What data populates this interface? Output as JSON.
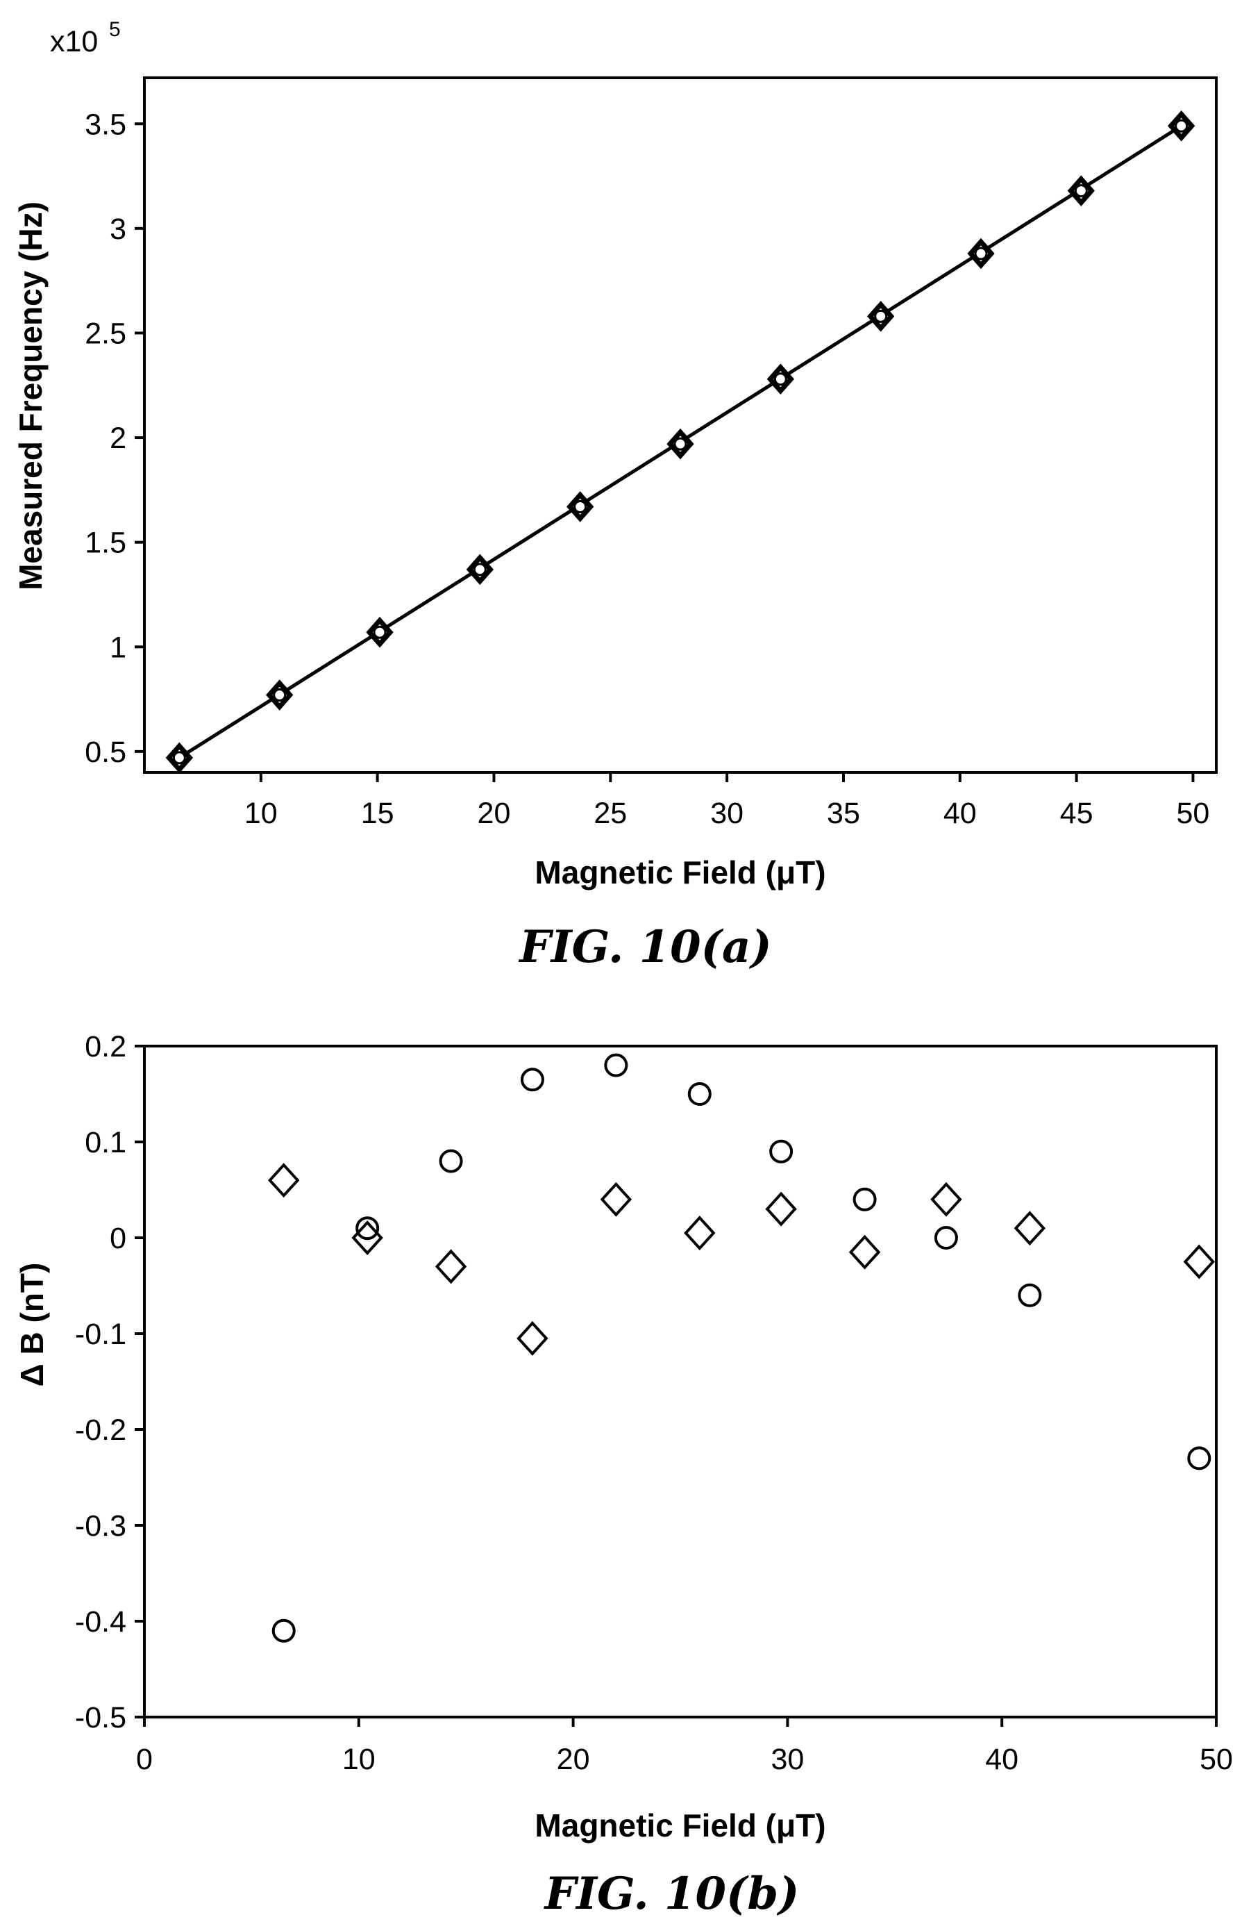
{
  "chart_data": [
    {
      "type": "line",
      "caption": "FIG. 10(a)",
      "xlabel": "Magnetic Field (μT)",
      "ylabel": "Measured Frequency (Hz)",
      "y_multiplier": {
        "base": "x10",
        "exponent": "5"
      },
      "xlim": [
        5,
        51
      ],
      "ylim": [
        0.4,
        3.72
      ],
      "xticks": [
        10,
        15,
        20,
        25,
        30,
        35,
        40,
        45,
        50
      ],
      "xtick_labels": [
        "10",
        "15",
        "20",
        "25",
        "30",
        "35",
        "40",
        "45",
        "50"
      ],
      "yticks": [
        0.5,
        1,
        1.5,
        2,
        2.5,
        3,
        3.5
      ],
      "ytick_labels": [
        "0.5",
        "1",
        "1.5",
        "2",
        "2.5",
        "3",
        "3.5"
      ],
      "grid": false,
      "fit_line": {
        "x": [
          6.5,
          49.5
        ],
        "y": [
          0.47,
          3.49
        ]
      },
      "series": [
        {
          "marker": "diamond",
          "x": [
            6.5,
            10.8,
            15.1,
            19.4,
            23.7,
            28.0,
            32.3,
            36.6,
            40.9,
            45.2,
            49.5
          ],
          "y": [
            0.47,
            0.77,
            1.07,
            1.37,
            1.67,
            1.97,
            2.28,
            2.58,
            2.88,
            3.18,
            3.49
          ]
        },
        {
          "marker": "circle",
          "x": [
            6.5,
            10.8,
            15.1,
            19.4,
            23.7,
            28.0,
            32.3,
            36.6,
            40.9,
            45.2,
            49.5
          ],
          "y": [
            0.47,
            0.77,
            1.07,
            1.37,
            1.67,
            1.97,
            2.28,
            2.58,
            2.88,
            3.18,
            3.49
          ]
        }
      ]
    },
    {
      "type": "scatter",
      "caption": "FIG. 10(b)",
      "xlabel": "Magnetic Field (μT)",
      "ylabel": "Δ B (nT)",
      "xlim": [
        0,
        50
      ],
      "ylim": [
        -0.5,
        0.2
      ],
      "xticks": [
        0,
        10,
        20,
        30,
        40,
        50
      ],
      "xtick_labels": [
        "0",
        "10",
        "20",
        "30",
        "40",
        "50"
      ],
      "yticks": [
        -0.5,
        -0.4,
        -0.3,
        -0.2,
        -0.1,
        0,
        0.1,
        0.2
      ],
      "ytick_labels": [
        "-0.5",
        "-0.4",
        "-0.3",
        "-0.2",
        "-0.1",
        "0",
        "0.1",
        "0.2"
      ],
      "grid": false,
      "series": [
        {
          "marker": "circle",
          "x": [
            6.5,
            10.4,
            14.3,
            18.1,
            22.0,
            25.9,
            29.7,
            33.6,
            37.4,
            41.3,
            49.2
          ],
          "y": [
            -0.41,
            0.01,
            0.08,
            0.165,
            0.18,
            0.15,
            0.09,
            0.04,
            0.0,
            -0.06,
            -0.23
          ]
        },
        {
          "marker": "diamond",
          "x": [
            6.5,
            10.4,
            14.3,
            18.1,
            22.0,
            25.9,
            29.7,
            33.6,
            37.4,
            41.3,
            49.2
          ],
          "y": [
            0.06,
            0.0,
            -0.03,
            -0.105,
            0.04,
            0.005,
            0.03,
            -0.015,
            0.04,
            0.01,
            -0.025
          ]
        }
      ]
    }
  ]
}
